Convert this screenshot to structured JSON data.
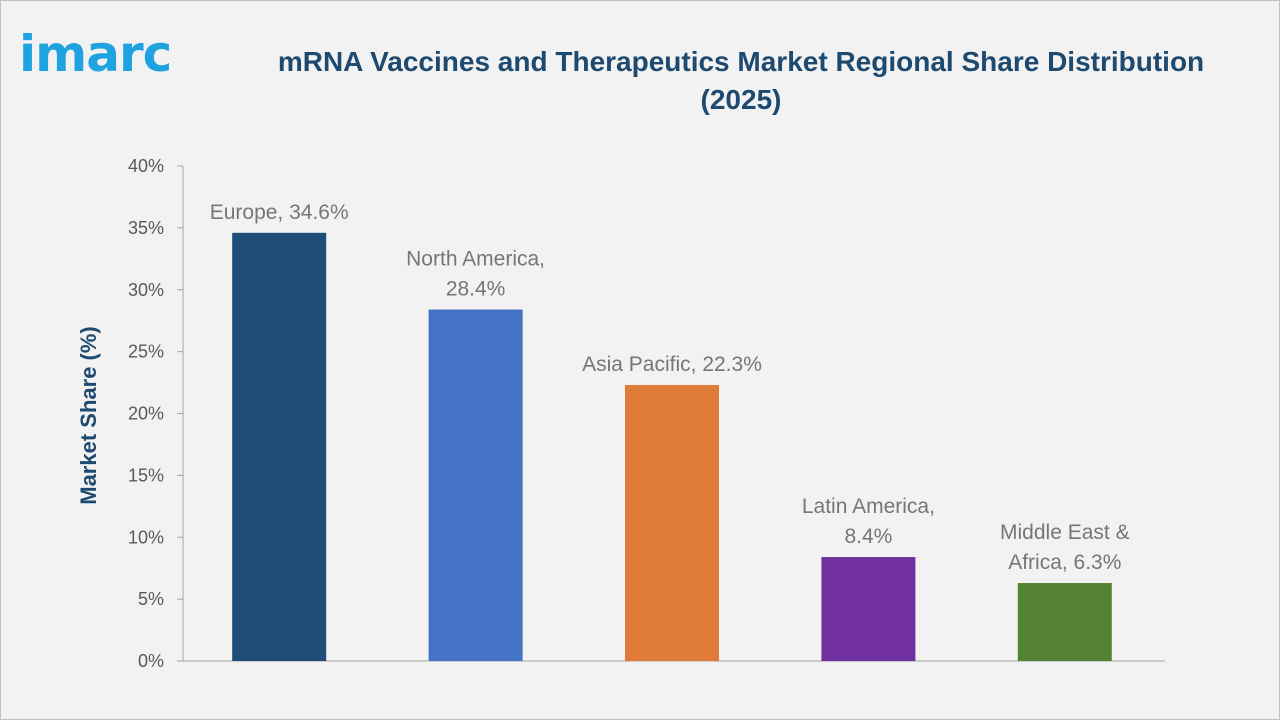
{
  "logo": {
    "text": "imarc"
  },
  "chart_data": {
    "type": "bar",
    "title": "mRNA Vaccines and Therapeutics Market Regional Share Distribution (2025)",
    "xlabel": "",
    "ylabel": "Market Share (%)",
    "ylim": [
      0,
      40
    ],
    "yticks": [
      "0%",
      "5%",
      "10%",
      "15%",
      "20%",
      "25%",
      "30%",
      "35%",
      "40%"
    ],
    "grid": false,
    "categories": [
      "Europe",
      "North America",
      "Asia Pacific",
      "Latin America",
      "Middle East & Africa"
    ],
    "values": [
      34.6,
      28.4,
      22.3,
      8.4,
      6.3
    ],
    "data_labels": [
      [
        "Europe, 34.6%"
      ],
      [
        "North America,",
        "28.4%"
      ],
      [
        "Asia Pacific, 22.3%"
      ],
      [
        "Latin America,",
        "8.4%"
      ],
      [
        "Middle East &",
        "Africa, 6.3%"
      ]
    ],
    "colors": [
      "#1f4e79",
      "#4472c4",
      "#e07b39",
      "#7030a0",
      "#548235"
    ]
  }
}
